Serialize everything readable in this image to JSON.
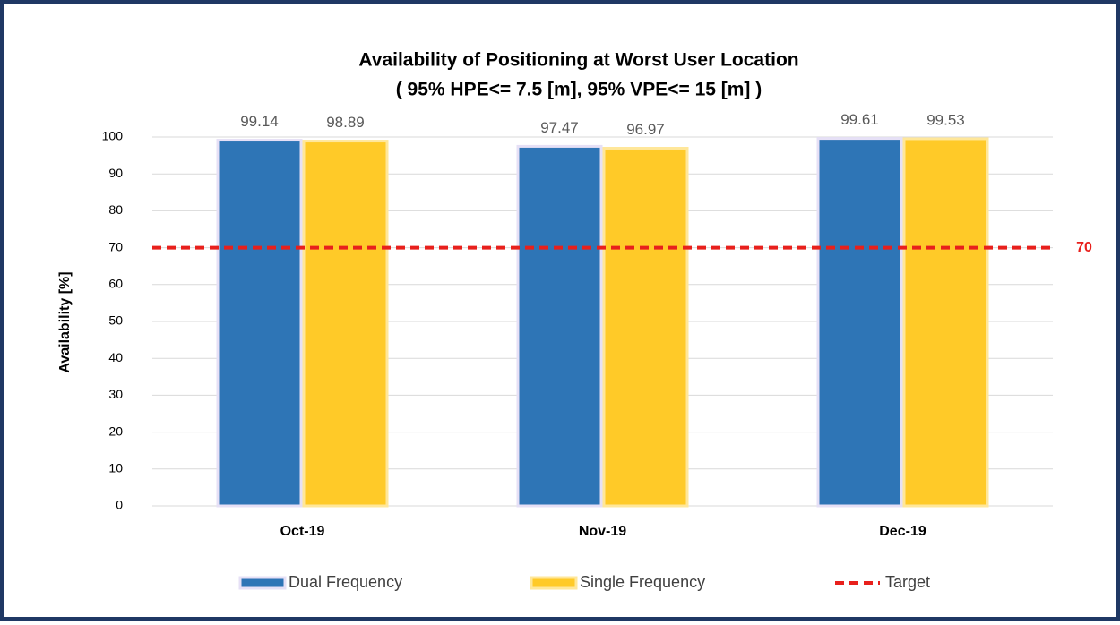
{
  "chart_data": {
    "type": "bar",
    "title": "Availability of Positioning at Worst User Location",
    "subtitle": "( 95% HPE<= 7.5 [m], 95% VPE<= 15 [m] )",
    "y_label": "Availability [%]",
    "categories": [
      "Oct-19",
      "Nov-19",
      "Dec-19"
    ],
    "series": [
      {
        "name": "Dual Frequency",
        "color": "#2e75b6",
        "values": [
          99.14,
          97.47,
          99.61
        ]
      },
      {
        "name": "Single Frequency",
        "color": "#ffca28",
        "values": [
          98.89,
          96.97,
          99.53
        ]
      }
    ],
    "target": {
      "name": "Target",
      "color": "#e8201c",
      "value": 70
    },
    "ylim": [
      0,
      100
    ],
    "yticks": [
      0,
      10,
      20,
      30,
      40,
      50,
      60,
      70,
      80,
      90,
      100
    ],
    "grid": true
  }
}
